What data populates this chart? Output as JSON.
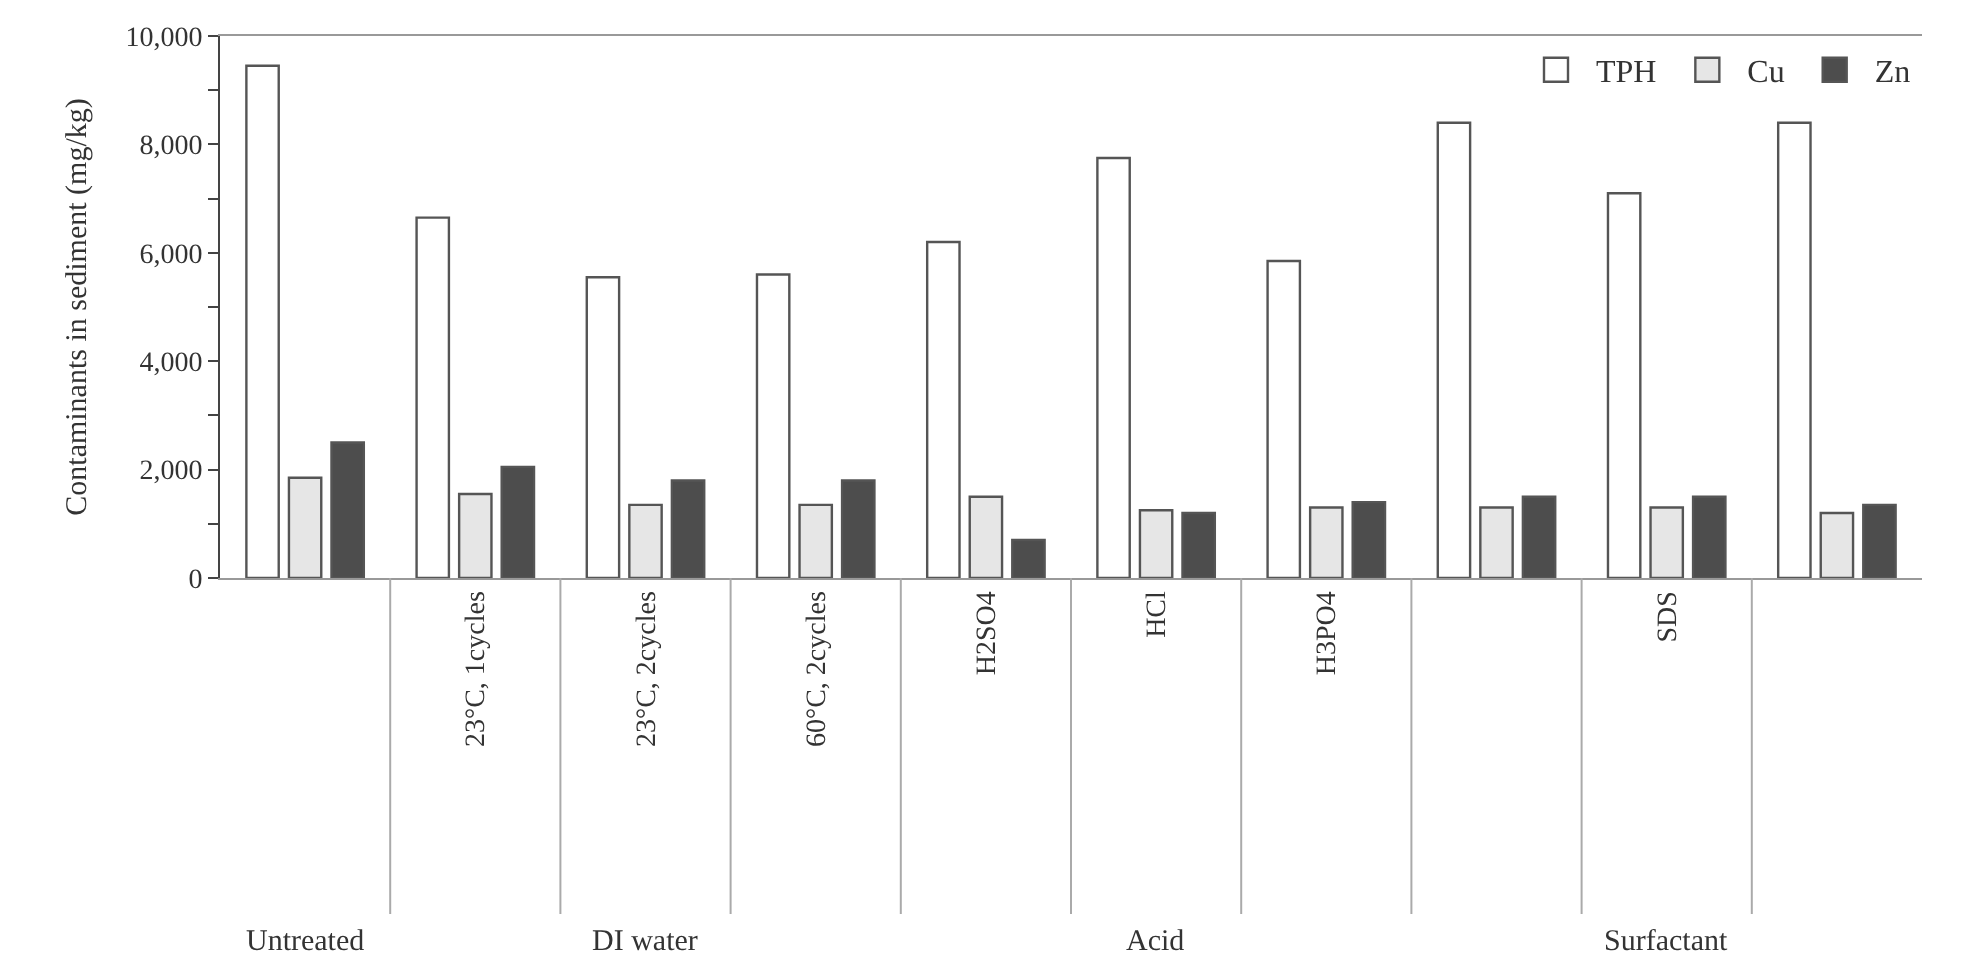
{
  "chart_data": {
    "type": "bar",
    "ylabel": "Contaminants in sediment (mg/kg)",
    "categories": [
      null,
      "23°C, 1cycles",
      "23°C, 2cycles",
      "60°C, 2cycles",
      "H2SO4",
      "HCl",
      "H3PO4",
      null,
      "SDS",
      null
    ],
    "series": [
      {
        "name": "TPH",
        "color": "#ffffff",
        "values": [
          9450,
          6650,
          5550,
          5600,
          6200,
          7750,
          5850,
          8400,
          7100,
          8400
        ]
      },
      {
        "name": "Cu",
        "color": "#e6e6e6",
        "values": [
          1850,
          1550,
          1350,
          1350,
          1500,
          1250,
          1300,
          1300,
          1300,
          1200
        ]
      },
      {
        "name": "Zn",
        "color": "#4d4d4d",
        "values": [
          2500,
          2050,
          1800,
          1800,
          700,
          1200,
          1400,
          1500,
          1500,
          1350
        ]
      }
    ],
    "ylim": [
      0,
      10000
    ],
    "yticks": [
      0,
      {
        "value": 1000,
        "label": null
      },
      {
        "value": 2000,
        "label": "2,000"
      },
      {
        "value": 3000,
        "label": null
      },
      {
        "value": 4000,
        "label": "4,000"
      },
      {
        "value": 5000,
        "label": null
      },
      {
        "value": 6000,
        "label": "6,000"
      },
      {
        "value": 7000,
        "label": null
      },
      {
        "value": 8000,
        "label": "8,000"
      },
      {
        "value": 9000,
        "label": null
      },
      {
        "value": 10000,
        "label": "10,000"
      }
    ],
    "annotations": [
      "Untreated",
      "DI water",
      "Acid",
      "Surfactant"
    ],
    "legend": "top right"
  }
}
